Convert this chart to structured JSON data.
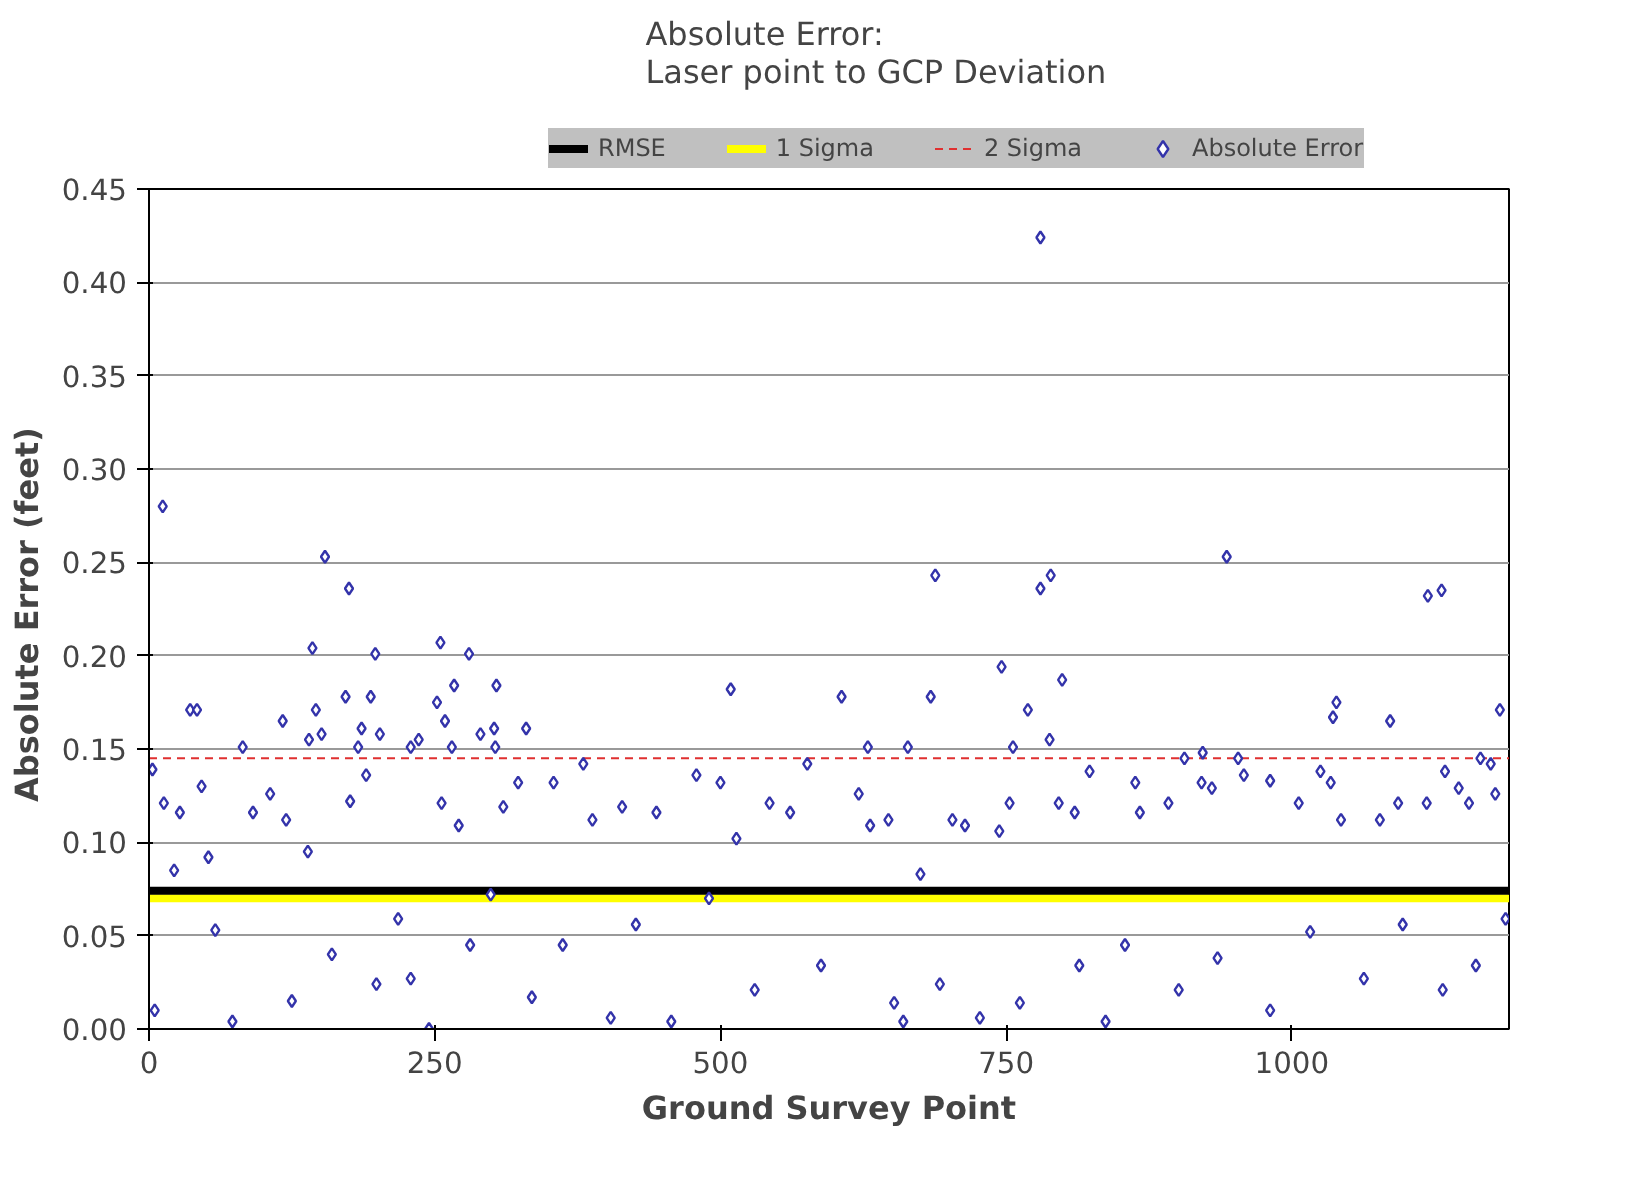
{
  "chart_data": {
    "type": "scatter",
    "title": "Absolute Error:\nLaser point to GCP  Deviation",
    "xlabel": "Ground Survey Point",
    "ylabel": "Absolute Error  (feet)",
    "xlim": [
      0,
      1190
    ],
    "xticks": [
      0,
      250,
      500,
      750,
      1000
    ],
    "ylim": [
      0,
      0.45
    ],
    "yticks": [
      {
        "value": 0,
        "label": "0.00"
      },
      {
        "value": 0.05,
        "label": "0.05"
      },
      {
        "value": 0.1,
        "label": "0.10"
      },
      {
        "value": 0.15,
        "label": "0.15"
      },
      {
        "value": 0.2,
        "label": "0.20"
      },
      {
        "value": 0.25,
        "label": "0.25"
      },
      {
        "value": 0.3,
        "label": "0.30"
      },
      {
        "value": 0.35,
        "label": "0.35"
      },
      {
        "value": 0.4,
        "label": "0.40"
      },
      {
        "value": 0.45,
        "label": "0.45"
      }
    ],
    "grid": "y",
    "legend": "top",
    "marker": "diamond",
    "ref_lines": [
      {
        "axis": "y",
        "value": 0.074,
        "label": "RMSE",
        "color": "#000000",
        "line_style": "solid"
      },
      {
        "axis": "y",
        "value": 0.07,
        "label": "1 Sigma",
        "color": "#ffff00",
        "line_style": "solid"
      },
      {
        "axis": "y",
        "value": 0.145,
        "label": "2 Sigma",
        "color": "#e03030",
        "line_style": "dashed"
      }
    ],
    "series": [
      {
        "name": "Absolute Error",
        "color": "#3333aa",
        "x": [
          12,
          154,
          175,
          143,
          255,
          198,
          280,
          509,
          304,
          172,
          194,
          267,
          36,
          42,
          146,
          252,
          330,
          186,
          302,
          290,
          151,
          202,
          140,
          117,
          82,
          183,
          229,
          265,
          303,
          259,
          236,
          780,
          943,
          688,
          780,
          789,
          1119,
          1131,
          746,
          799,
          606,
          684,
          769,
          1036,
          1039,
          1086,
          1182,
          788,
          629,
          664,
          756,
          922,
          906,
          953,
          1165,
          3,
          13,
          22,
          5,
          27,
          46,
          52,
          58,
          73,
          91,
          106,
          120,
          125,
          139,
          160,
          176,
          190,
          199,
          218,
          229,
          245,
          256,
          271,
          281,
          299,
          310,
          323,
          335,
          354,
          362,
          380,
          388,
          404,
          414,
          426,
          444,
          457,
          479,
          490,
          500,
          514,
          530,
          543,
          561,
          576,
          588,
          621,
          631,
          647,
          660,
          675,
          703,
          714,
          727,
          744,
          753,
          796,
          810,
          823,
          837,
          863,
          867,
          892,
          921,
          930,
          958,
          981,
          1006,
          1025,
          1034,
          1043,
          1077,
          1093,
          1118,
          1134,
          1146,
          1155,
          1178,
          1174,
          652,
          692,
          762,
          814,
          854,
          901,
          935,
          981,
          1016,
          1063,
          1097,
          1132,
          1161,
          1187
        ],
        "values": [
          0.28,
          0.253,
          0.236,
          0.204,
          0.207,
          0.201,
          0.201,
          0.182,
          0.184,
          0.178,
          0.178,
          0.184,
          0.171,
          0.171,
          0.171,
          0.175,
          0.161,
          0.161,
          0.161,
          0.158,
          0.158,
          0.158,
          0.155,
          0.165,
          0.151,
          0.151,
          0.151,
          0.151,
          0.151,
          0.165,
          0.155,
          0.424,
          0.253,
          0.243,
          0.236,
          0.243,
          0.232,
          0.235,
          0.194,
          0.187,
          0.178,
          0.178,
          0.171,
          0.167,
          0.175,
          0.165,
          0.171,
          0.155,
          0.151,
          0.151,
          0.151,
          0.148,
          0.145,
          0.145,
          0.145,
          0.139,
          0.121,
          0.085,
          0.01,
          0.116,
          0.13,
          0.092,
          0.053,
          0.004,
          0.116,
          0.126,
          0.112,
          0.015,
          0.095,
          0.04,
          0.122,
          0.136,
          0.024,
          0.059,
          0.027,
          0.0,
          0.121,
          0.109,
          0.045,
          0.072,
          0.119,
          0.132,
          0.017,
          0.132,
          0.045,
          0.142,
          0.112,
          0.006,
          0.119,
          0.056,
          0.116,
          0.004,
          0.136,
          0.07,
          0.132,
          0.102,
          0.021,
          0.121,
          0.116,
          0.142,
          0.034,
          0.126,
          0.109,
          0.112,
          0.004,
          0.083,
          0.112,
          0.109,
          0.006,
          0.106,
          0.121,
          0.121,
          0.116,
          0.138,
          0.004,
          0.132,
          0.116,
          0.121,
          0.132,
          0.129,
          0.136,
          0.133,
          0.121,
          0.138,
          0.132,
          0.112,
          0.112,
          0.121,
          0.121,
          0.138,
          0.129,
          0.121,
          0.126,
          0.142,
          0.014,
          0.024,
          0.014,
          0.034,
          0.045,
          0.021,
          0.038,
          0.01,
          0.052,
          0.027,
          0.056,
          0.021,
          0.034,
          0.059
        ]
      }
    ]
  }
}
